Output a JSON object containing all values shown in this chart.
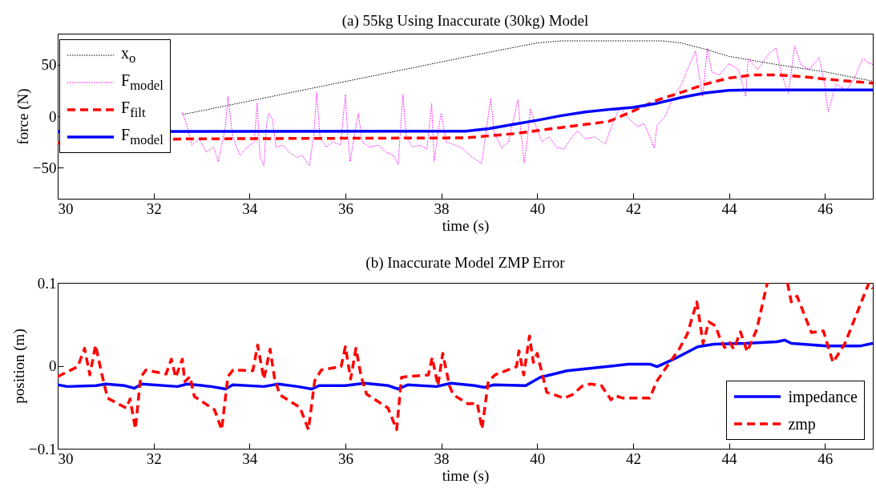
{
  "chart_data": [
    {
      "type": "line",
      "title": "(a) 55kg Using Inaccurate (30kg) Model",
      "xlabel": "time (s)",
      "ylabel": "force (N)",
      "xlim": [
        30,
        47
      ],
      "xticks": [
        30,
        32,
        34,
        36,
        38,
        40,
        42,
        44,
        46
      ],
      "ylim": [
        -80,
        80
      ],
      "yticks": [
        -50,
        0,
        50
      ],
      "legend": "top left",
      "series": [
        {
          "name": "x$_{o}$",
          "color": "#000000",
          "line_style": "dotted",
          "x": [
            32.6,
            39,
            39.5,
            40,
            40.5,
            42.6,
            43,
            43.5,
            44,
            45,
            46,
            47
          ],
          "values": [
            1.5,
            62,
            66.5,
            71,
            73,
            73,
            71,
            65,
            58,
            50,
            43,
            34
          ]
        },
        {
          "name": "F$_{model}$",
          "color": "#ff00ff",
          "line_style": "dotted",
          "x": [
            32.6,
            32.7,
            32.8,
            32.95,
            33.1,
            33.25,
            33.35,
            33.5,
            33.55,
            33.65,
            33.8,
            33.95,
            34.1,
            34.16,
            34.22,
            34.3,
            34.35,
            34.4,
            34.48,
            34.55,
            34.7,
            34.85,
            35.0,
            35.1,
            35.25,
            35.35,
            35.4,
            35.47,
            35.6,
            35.75,
            35.9,
            36.0,
            36.05,
            36.1,
            36.2,
            36.27,
            36.35,
            36.5,
            36.7,
            36.85,
            37.0,
            37.1,
            37.2,
            37.27,
            37.4,
            37.55,
            37.7,
            37.8,
            37.85,
            37.95,
            38.0,
            38.1,
            38.23,
            38.4,
            38.6,
            38.84,
            39.03,
            39.1,
            39.26,
            39.4,
            39.6,
            39.65,
            39.73,
            39.8,
            39.86,
            39.97,
            40.1,
            40.25,
            40.4,
            40.56,
            40.7,
            40.84,
            41.0,
            41.2,
            41.42,
            41.55,
            41.73,
            41.9,
            42.1,
            42.23,
            42.35,
            42.44,
            42.5,
            42.67,
            42.84,
            43.0,
            43.17,
            43.3,
            43.45,
            43.55,
            43.64,
            43.8,
            44.0,
            44.2,
            44.35,
            44.4,
            44.6,
            44.84,
            44.98,
            45.1,
            45.24,
            45.37,
            45.5,
            45.67,
            45.88,
            46.0,
            46.07,
            46.23,
            46.45,
            46.6,
            46.79,
            46.9,
            47.0
          ],
          "values": [
            4,
            -10,
            -28,
            -22,
            -35,
            -30,
            -44,
            -10,
            19,
            -20,
            -38,
            -30,
            -25,
            13,
            -40,
            -48,
            -10,
            3,
            -3,
            -30,
            -28,
            -36,
            -40,
            -38,
            -48,
            -15,
            23,
            -20,
            -30,
            -25,
            -28,
            21,
            -20,
            -44,
            -15,
            3,
            -25,
            -30,
            -28,
            -35,
            -38,
            -47,
            21,
            -20,
            -30,
            -28,
            -32,
            12,
            -44,
            -10,
            3,
            -25,
            -27,
            -30,
            -38,
            -46,
            17,
            -15,
            -31,
            -25,
            16,
            -10,
            -45,
            -20,
            7,
            -9,
            -25,
            -20,
            -30,
            -32,
            -22,
            -14,
            -22,
            -20,
            -27,
            -10,
            9,
            -2,
            -10,
            -7,
            -20,
            -31,
            -9,
            0,
            19,
            30,
            49,
            63,
            19,
            66,
            43,
            40,
            51,
            45,
            19,
            56,
            45,
            61,
            66,
            40,
            22,
            68,
            50,
            45,
            57,
            30,
            4,
            31,
            25,
            35,
            56,
            52,
            50
          ]
        },
        {
          "name": "F$_{filt}$",
          "color": "#ff0000",
          "line_style": "dashed",
          "x": [
            30,
            32.6,
            38.5,
            39,
            39.5,
            40,
            40.5,
            41,
            41.5,
            42,
            42.5,
            43,
            43.5,
            44,
            44.5,
            45,
            45.5,
            46,
            46.5,
            47
          ],
          "values": [
            -26,
            -22,
            -21,
            -19,
            -17,
            -14,
            -11,
            -8,
            -5,
            5,
            15.5,
            23,
            31,
            37,
            40,
            40,
            38.5,
            36,
            34,
            32
          ]
        },
        {
          "name": "F$_{model}$",
          "color": "#0000ff",
          "line_style": "solid",
          "x": [
            30,
            38.5,
            39,
            39.5,
            40,
            40.5,
            41,
            41.5,
            42,
            42.5,
            43,
            43.5,
            44,
            44.5,
            47
          ],
          "values": [
            -15,
            -14.5,
            -12,
            -8,
            -4,
            0.5,
            4,
            6.5,
            8.5,
            12.5,
            18,
            22.5,
            25,
            25.5,
            25.5
          ]
        }
      ]
    },
    {
      "type": "line",
      "title": "(b) Inaccurate Model ZMP Error",
      "xlabel": "time (s)",
      "ylabel": "position (m)",
      "xlim": [
        30,
        47
      ],
      "xticks": [
        30,
        32,
        34,
        36,
        38,
        40,
        42,
        44,
        46
      ],
      "ylim": [
        -0.1,
        0.1
      ],
      "yticks": [
        -0.1,
        0,
        0.1
      ],
      "legend": "bottom right",
      "series": [
        {
          "name": "impedance",
          "color": "#0000ff",
          "line_style": "solid",
          "x": [
            30,
            30.2,
            30.8,
            31.0,
            31.4,
            31.6,
            31.75,
            32.5,
            32.7,
            33.2,
            33.5,
            33.65,
            34.3,
            34.6,
            35.0,
            35.3,
            35.45,
            36.0,
            36.4,
            36.9,
            37.1,
            37.3,
            37.9,
            38.2,
            38.7,
            38.9,
            39.1,
            39.76,
            40.06,
            40.62,
            41.29,
            41.9,
            42.35,
            42.5,
            42.85,
            43.35,
            43.69,
            44.35,
            45.0,
            45.16,
            45.3,
            46.02,
            46.75,
            47
          ],
          "values": [
            -0.023,
            -0.025,
            -0.024,
            -0.022,
            -0.024,
            -0.027,
            -0.022,
            -0.025,
            -0.022,
            -0.025,
            -0.028,
            -0.023,
            -0.025,
            -0.022,
            -0.025,
            -0.028,
            -0.024,
            -0.024,
            -0.021,
            -0.024,
            -0.028,
            -0.023,
            -0.025,
            -0.021,
            -0.024,
            -0.026,
            -0.023,
            -0.024,
            -0.014,
            -0.006,
            -0.002,
            0.002,
            0.002,
            -0.001,
            0.008,
            0.023,
            0.026,
            0.027,
            0.029,
            0.031,
            0.027,
            0.024,
            0.024,
            0.027
          ]
        },
        {
          "name": "zmp",
          "color": "#ff0000",
          "line_style": "dashed",
          "x": [
            30.0,
            30.42,
            30.56,
            30.67,
            30.79,
            30.9,
            31.04,
            31.43,
            31.51,
            31.62,
            31.73,
            31.84,
            32.26,
            32.37,
            32.46,
            32.6,
            32.65,
            32.76,
            32.85,
            33.27,
            33.42,
            33.55,
            33.66,
            34.07,
            34.17,
            34.3,
            34.43,
            34.52,
            34.63,
            35.05,
            35.23,
            35.36,
            35.5,
            35.91,
            36.0,
            36.11,
            36.22,
            36.33,
            36.44,
            36.89,
            37.07,
            37.17,
            37.28,
            37.73,
            37.81,
            37.93,
            38.03,
            38.17,
            38.25,
            38.56,
            38.75,
            38.85,
            38.98,
            39.12,
            39.57,
            39.62,
            39.72,
            39.84,
            39.92,
            40.0,
            40.2,
            40.56,
            40.73,
            40.95,
            41.12,
            41.34,
            41.54,
            41.62,
            41.79,
            42.35,
            42.49,
            42.68,
            42.96,
            43.13,
            43.33,
            43.46,
            43.58,
            43.72,
            43.8,
            43.91,
            44.02,
            44.1,
            44.24,
            44.38,
            44.58,
            44.8,
            45.0,
            45.22,
            45.3,
            45.42,
            45.72,
            45.97,
            46.17,
            46.42,
            46.7,
            46.92,
            47.0
          ],
          "values": [
            -0.013,
            -0.001,
            0.021,
            -0.011,
            0.025,
            -0.005,
            -0.039,
            -0.051,
            -0.04,
            -0.076,
            -0.014,
            -0.005,
            -0.01,
            0.008,
            -0.014,
            0.008,
            -0.019,
            -0.013,
            -0.037,
            -0.053,
            -0.077,
            -0.013,
            -0.005,
            -0.006,
            0.025,
            -0.016,
            0.02,
            -0.014,
            -0.035,
            -0.05,
            -0.077,
            -0.018,
            -0.005,
            -0.001,
            0.023,
            -0.016,
            0.021,
            -0.013,
            -0.034,
            -0.051,
            -0.077,
            -0.014,
            -0.013,
            -0.011,
            0.01,
            -0.024,
            0.015,
            -0.024,
            -0.035,
            -0.046,
            -0.045,
            -0.076,
            -0.019,
            -0.011,
            -0.001,
            0.018,
            -0.011,
            0.036,
            0.004,
            0.015,
            -0.032,
            -0.039,
            -0.035,
            -0.024,
            -0.022,
            -0.024,
            -0.041,
            -0.036,
            -0.039,
            -0.039,
            -0.019,
            -0.003,
            0.02,
            0.038,
            0.077,
            0.027,
            0.053,
            0.048,
            0.035,
            0.022,
            0.028,
            0.02,
            0.041,
            0.017,
            0.044,
            0.1,
            null,
            0.1,
            0.077,
            0.084,
            0.04,
            0.042,
            0.004,
            0.027,
            0.068,
            0.1,
            0.093
          ]
        }
      ]
    }
  ]
}
